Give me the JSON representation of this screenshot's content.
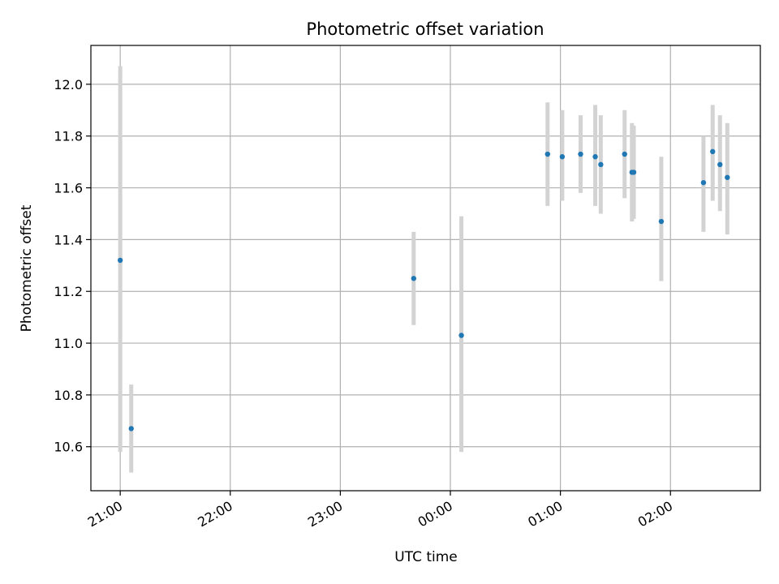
{
  "chart_data": {
    "type": "scatter",
    "title": "Photometric offset variation",
    "xlabel": "UTC time",
    "ylabel": "Photometric offset",
    "x_ticks": [
      "21:00",
      "22:00",
      "23:00",
      "00:00",
      "01:00",
      "02:00"
    ],
    "y_ticks": [
      "10.6",
      "10.8",
      "11.0",
      "11.2",
      "11.4",
      "11.6",
      "11.8",
      "12.0"
    ],
    "ylim": [
      10.43,
      12.15
    ],
    "xlim": [
      "20:44",
      "02:49"
    ],
    "grid": true,
    "colors": {
      "points": "#1f77b4",
      "errorbars": "#d3d3d3",
      "grid": "#b0b0b0"
    },
    "points": [
      {
        "x": "21:00",
        "y": 11.32,
        "err_low": 10.58,
        "err_high": 12.07
      },
      {
        "x": "21:06",
        "y": 10.67,
        "err_low": 10.5,
        "err_high": 10.84
      },
      {
        "x": "23:40",
        "y": 11.25,
        "err_low": 11.07,
        "err_high": 11.43
      },
      {
        "x": "00:06",
        "y": 11.03,
        "err_low": 10.58,
        "err_high": 11.49
      },
      {
        "x": "00:53",
        "y": 11.73,
        "err_low": 11.53,
        "err_high": 11.93
      },
      {
        "x": "01:01",
        "y": 11.72,
        "err_low": 11.55,
        "err_high": 11.9
      },
      {
        "x": "01:11",
        "y": 11.73,
        "err_low": 11.58,
        "err_high": 11.88
      },
      {
        "x": "01:19",
        "y": 11.72,
        "err_low": 11.53,
        "err_high": 11.92
      },
      {
        "x": "01:22",
        "y": 11.69,
        "err_low": 11.5,
        "err_high": 11.88
      },
      {
        "x": "01:35",
        "y": 11.73,
        "err_low": 11.56,
        "err_high": 11.9
      },
      {
        "x": "01:39",
        "y": 11.66,
        "err_low": 11.47,
        "err_high": 11.85
      },
      {
        "x": "01:40",
        "y": 11.66,
        "err_low": 11.48,
        "err_high": 11.84
      },
      {
        "x": "01:55",
        "y": 11.47,
        "err_low": 11.24,
        "err_high": 11.72
      },
      {
        "x": "02:18",
        "y": 11.62,
        "err_low": 11.43,
        "err_high": 11.8
      },
      {
        "x": "02:23",
        "y": 11.74,
        "err_low": 11.55,
        "err_high": 11.92
      },
      {
        "x": "02:27",
        "y": 11.69,
        "err_low": 11.51,
        "err_high": 11.88
      },
      {
        "x": "02:31",
        "y": 11.64,
        "err_low": 11.42,
        "err_high": 11.85
      }
    ]
  }
}
